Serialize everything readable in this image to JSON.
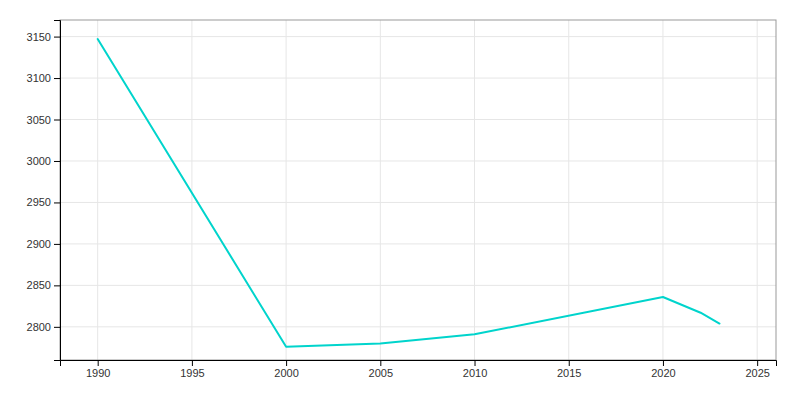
{
  "chart_data": {
    "type": "line",
    "x": [
      1990,
      2000,
      2005,
      2010,
      2020,
      2022,
      2023
    ],
    "values": [
      3147,
      2776,
      2780,
      2791,
      2836,
      2817,
      2804
    ],
    "color": "#00d4cc",
    "xlim": [
      1988,
      2026
    ],
    "ylim": [
      2760,
      3170
    ],
    "xticks": [
      1990,
      1995,
      2000,
      2005,
      2010,
      2015,
      2020,
      2025
    ],
    "yticks": [
      2800,
      2850,
      2900,
      2950,
      3000,
      3050,
      3100,
      3150
    ],
    "grid": true
  }
}
